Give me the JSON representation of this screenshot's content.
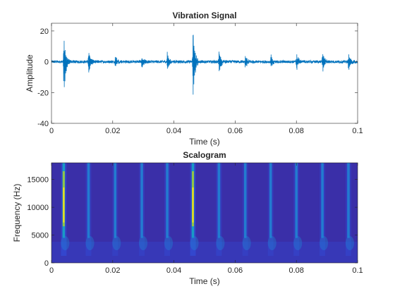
{
  "chart_data": [
    {
      "type": "line",
      "title": "Vibration Signal",
      "xlabel": "Time (s)",
      "ylabel": "Amplitude",
      "xlim": [
        0,
        0.1
      ],
      "ylim": [
        -40,
        25
      ],
      "xticks": [
        0,
        0.02,
        0.04,
        0.06,
        0.08,
        0.1
      ],
      "xtick_labels": [
        "0",
        "0.02",
        "0.04",
        "0.06",
        "0.08",
        "0.1"
      ],
      "yticks": [
        -40,
        -20,
        0,
        20
      ],
      "ytick_labels": [
        "-40",
        "-20",
        "0",
        "20"
      ],
      "line_color": "#0072BD",
      "impulses": [
        {
          "t": 0.004,
          "max": 19,
          "min": -27
        },
        {
          "t": 0.0121,
          "max": 9,
          "min": -10
        },
        {
          "t": 0.0208,
          "max": 5,
          "min": -5
        },
        {
          "t": 0.0295,
          "max": 5,
          "min": -5
        },
        {
          "t": 0.0378,
          "max": 7,
          "min": -6
        },
        {
          "t": 0.0462,
          "max": 25,
          "min": -30
        },
        {
          "t": 0.0547,
          "max": 9,
          "min": -10
        },
        {
          "t": 0.0633,
          "max": 5,
          "min": -5
        },
        {
          "t": 0.0716,
          "max": 5,
          "min": -5
        },
        {
          "t": 0.08,
          "max": 7,
          "min": -6
        },
        {
          "t": 0.0885,
          "max": 8,
          "min": -9
        },
        {
          "t": 0.097,
          "max": 8,
          "min": -8
        }
      ],
      "noise_level": 1.5
    },
    {
      "type": "heatmap",
      "title": "Scalogram",
      "xlabel": "Time (s)",
      "ylabel": "Frequency (Hz)",
      "xlim": [
        0,
        0.1
      ],
      "ylim": [
        0,
        18000
      ],
      "xticks": [
        0,
        0.02,
        0.04,
        0.06,
        0.08,
        0.1
      ],
      "xtick_labels": [
        "0",
        "0.02",
        "0.04",
        "0.06",
        "0.08",
        "0.1"
      ],
      "yticks": [
        0,
        5000,
        10000,
        15000
      ],
      "ytick_labels": [
        "0",
        "5000",
        "10000",
        "15000"
      ],
      "background_color": "#3a2fa8",
      "colormap": [
        "#3e26a8",
        "#2f55e4",
        "#1e8cd6",
        "#12b0c6",
        "#46c58f",
        "#9fc93b",
        "#e6bd2c",
        "#f9e31c"
      ],
      "ridges": [
        {
          "t": 0.004,
          "strength": 0.95
        },
        {
          "t": 0.0121,
          "strength": 0.45
        },
        {
          "t": 0.0208,
          "strength": 0.3
        },
        {
          "t": 0.0295,
          "strength": 0.3
        },
        {
          "t": 0.0378,
          "strength": 0.4
        },
        {
          "t": 0.0462,
          "strength": 1.0
        },
        {
          "t": 0.0547,
          "strength": 0.5
        },
        {
          "t": 0.0633,
          "strength": 0.3
        },
        {
          "t": 0.0716,
          "strength": 0.3
        },
        {
          "t": 0.08,
          "strength": 0.4
        },
        {
          "t": 0.0885,
          "strength": 0.45
        },
        {
          "t": 0.097,
          "strength": 0.45
        }
      ]
    }
  ]
}
